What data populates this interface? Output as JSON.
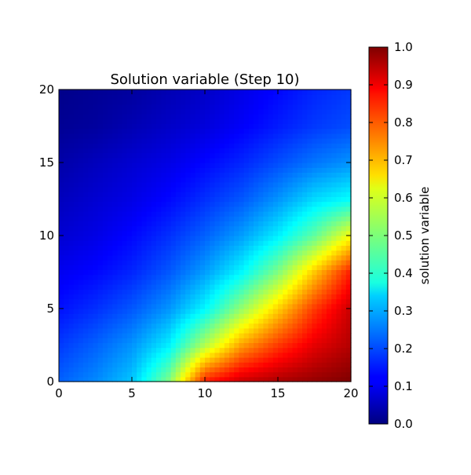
{
  "chart_data": {
    "type": "heatmap",
    "title": "Solution variable (Step 10)",
    "xlabel": "",
    "ylabel": "",
    "xlim": [
      0,
      20
    ],
    "ylim": [
      0,
      20
    ],
    "xticks": [
      "0",
      "5",
      "10",
      "15",
      "20"
    ],
    "yticks": [
      "0",
      "5",
      "10",
      "15",
      "20"
    ],
    "colormap": "jet",
    "colorbar": {
      "label": "solution variable",
      "range": [
        0,
        1
      ],
      "ticks": [
        "0.0",
        "0.1",
        "0.2",
        "0.3",
        "0.4",
        "0.5",
        "0.6",
        "0.7",
        "0.8",
        "0.9",
        "1.0"
      ]
    },
    "grid": false,
    "field": {
      "description_of_values": "approximate values on a coarse grid, rows from y=0 to y=20, columns from x=0 to x=20 in steps of 2.5",
      "x": [
        0,
        2.5,
        5,
        7.5,
        10,
        12.5,
        15,
        17.5,
        20
      ],
      "y": [
        0,
        2.5,
        5,
        7.5,
        10,
        12.5,
        15,
        17.5,
        20
      ],
      "values": [
        [
          0.22,
          0.26,
          0.32,
          0.5,
          0.85,
          0.93,
          0.96,
          0.98,
          1.0
        ],
        [
          0.18,
          0.22,
          0.27,
          0.36,
          0.55,
          0.72,
          0.82,
          0.9,
          0.95
        ],
        [
          0.14,
          0.17,
          0.21,
          0.27,
          0.37,
          0.52,
          0.67,
          0.82,
          0.93
        ],
        [
          0.11,
          0.13,
          0.16,
          0.21,
          0.28,
          0.37,
          0.5,
          0.68,
          0.85
        ],
        [
          0.08,
          0.1,
          0.13,
          0.17,
          0.22,
          0.28,
          0.36,
          0.47,
          0.62
        ],
        [
          0.06,
          0.08,
          0.1,
          0.13,
          0.17,
          0.21,
          0.27,
          0.34,
          0.38
        ],
        [
          0.04,
          0.06,
          0.08,
          0.1,
          0.13,
          0.16,
          0.2,
          0.24,
          0.27
        ],
        [
          0.02,
          0.03,
          0.05,
          0.07,
          0.09,
          0.12,
          0.15,
          0.18,
          0.2
        ],
        [
          0.01,
          0.02,
          0.03,
          0.05,
          0.07,
          0.1,
          0.13,
          0.16,
          0.18
        ]
      ]
    }
  }
}
